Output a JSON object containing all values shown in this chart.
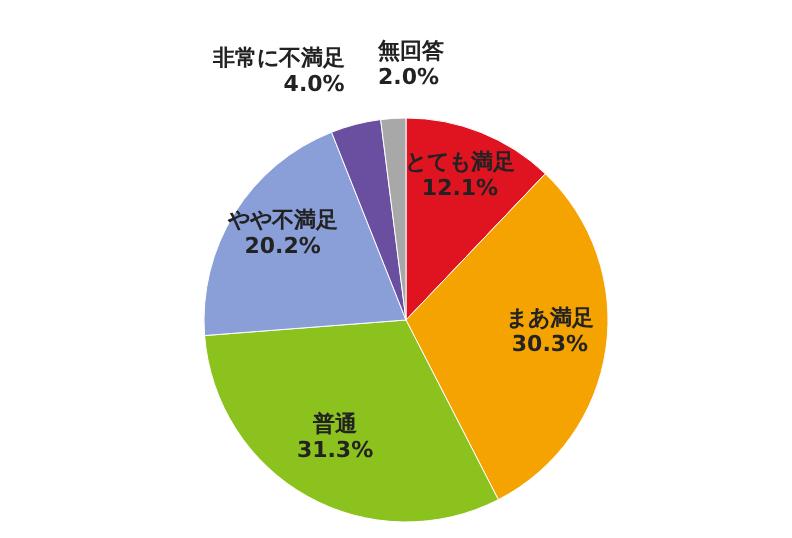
{
  "chart_data": {
    "type": "pie",
    "categories": [
      "とても満足",
      "まあ満足",
      "普通",
      "やや不満足",
      "非常に不満足",
      "無回答"
    ],
    "values": [
      12.1,
      30.3,
      31.3,
      20.2,
      4.0,
      2.0
    ],
    "value_labels": [
      "12.1%",
      "30.3%",
      "31.3%",
      "20.2%",
      "4.0%",
      "2.0%"
    ],
    "colors": [
      "#e01420",
      "#f5a300",
      "#8cc21e",
      "#8a9fd8",
      "#6a4fa0",
      "#a8a8a8"
    ]
  }
}
